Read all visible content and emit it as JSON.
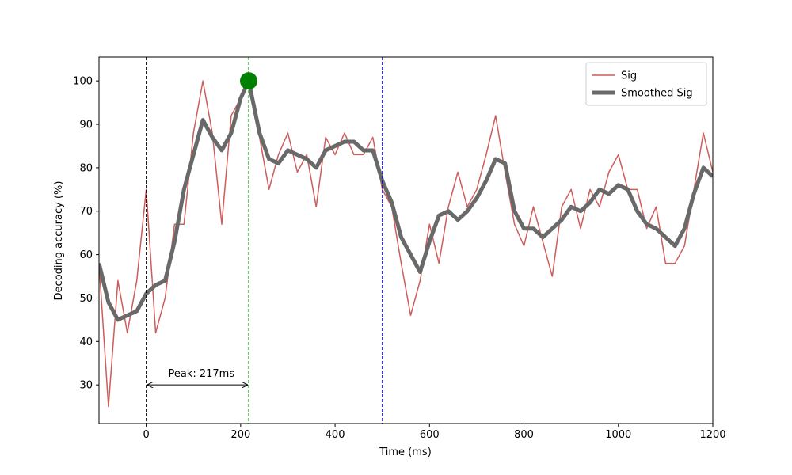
{
  "chart_data": {
    "type": "line",
    "xlabel": "Time (ms)",
    "ylabel": "Decoding accuracy (%)",
    "xlim": [
      -100,
      1200
    ],
    "ylim": [
      21.1,
      105.5
    ],
    "xticks": [
      0,
      200,
      400,
      600,
      800,
      1000,
      1200
    ],
    "yticks": [
      30,
      40,
      50,
      60,
      70,
      80,
      90,
      100
    ],
    "legend": "upper right",
    "x": [
      -100,
      -80,
      -60,
      -40,
      -20,
      0,
      20,
      40,
      60,
      80,
      100,
      120,
      140,
      160,
      180,
      200,
      217,
      240,
      260,
      280,
      300,
      320,
      340,
      360,
      380,
      400,
      420,
      440,
      460,
      480,
      500,
      520,
      540,
      560,
      580,
      600,
      620,
      640,
      660,
      680,
      700,
      720,
      740,
      760,
      780,
      800,
      820,
      840,
      860,
      880,
      900,
      920,
      940,
      960,
      980,
      1000,
      1020,
      1040,
      1060,
      1080,
      1100,
      1120,
      1140,
      1160,
      1180,
      1200
    ],
    "series": [
      {
        "name": "Sig",
        "color": "#cd5c5c",
        "width": 1.5,
        "values": [
          58,
          25,
          54,
          42,
          54,
          75,
          42,
          50,
          67,
          67,
          88,
          100,
          88,
          67,
          92,
          96,
          100,
          87,
          75,
          83,
          88,
          79,
          83,
          71,
          87,
          83,
          88,
          83,
          83,
          87,
          75,
          71,
          58,
          46,
          54,
          67,
          58,
          71,
          79,
          71,
          75,
          83,
          92,
          79,
          67,
          62,
          71,
          63,
          55,
          71,
          75,
          66,
          75,
          71,
          79,
          83,
          75,
          75,
          66,
          71,
          58,
          58,
          62,
          75,
          88,
          79
        ]
      },
      {
        "name": "Smoothed Sig",
        "color": "#696969",
        "width": 5,
        "values": [
          58,
          49,
          45,
          46,
          47,
          51,
          53,
          54,
          63,
          75,
          83,
          91,
          87,
          84,
          88,
          96,
          100,
          88,
          82,
          81,
          84,
          83,
          82,
          80,
          84,
          85,
          86,
          86,
          84,
          84,
          77,
          72,
          64,
          60,
          56,
          63,
          69,
          70,
          68,
          70,
          73,
          77,
          82,
          81,
          70,
          66,
          66,
          64,
          66,
          68,
          71,
          70,
          72,
          75,
          74,
          76,
          75,
          70,
          67,
          66,
          64,
          62,
          66,
          74,
          80,
          78
        ]
      }
    ],
    "vlines": [
      {
        "x": 0,
        "color": "black"
      },
      {
        "x": 217,
        "color": "green"
      },
      {
        "x": 500,
        "color": "blue"
      }
    ],
    "peak": {
      "x": 217,
      "y": 100,
      "color": "green"
    },
    "annotation": {
      "text": "Peak: 217ms",
      "x_start": 0,
      "x_end": 217,
      "y": 30
    }
  }
}
